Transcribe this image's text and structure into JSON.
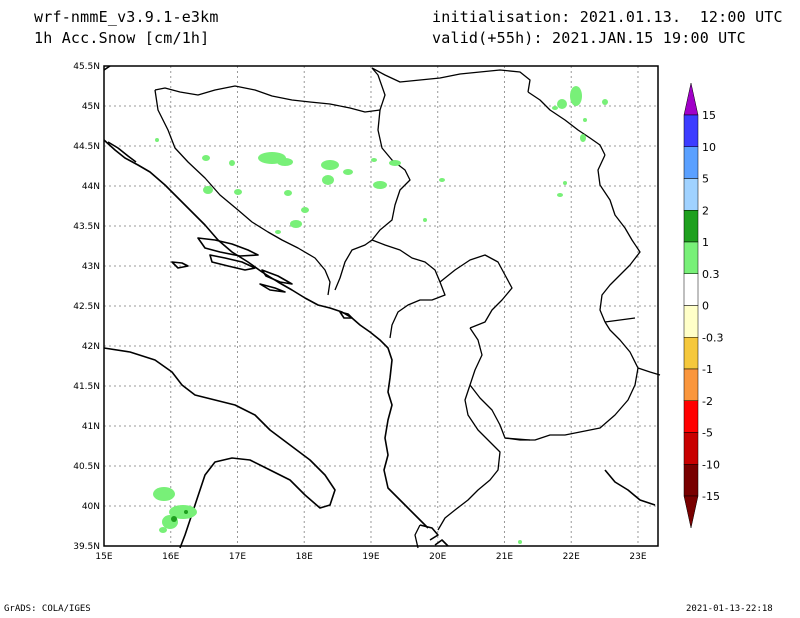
{
  "header": {
    "model": "wrf-nmmE_v3.9.1-e3km",
    "field": "1h Acc.Snow [cm/1h]",
    "init": "initialisation: 2021.01.13.  12:00 UTC",
    "valid": "valid(+55h): 2021.JAN.15 19:00 UTC"
  },
  "map": {
    "lon_range": [
      15,
      23.3
    ],
    "lat_range": [
      39.5,
      45.5
    ],
    "x_ticks": [
      "15E",
      "16E",
      "17E",
      "18E",
      "19E",
      "20E",
      "21E",
      "22E",
      "23E"
    ],
    "y_ticks": [
      "45.5N",
      "45N",
      "44.5N",
      "44N",
      "43.5N",
      "43N",
      "42.5N",
      "42N",
      "41.5N",
      "41N",
      "40.5N",
      "40N",
      "39.5N"
    ]
  },
  "legend": {
    "labels": [
      "15",
      "10",
      "5",
      "2",
      "1",
      "0.3",
      "0",
      "-0.3",
      "-1",
      "-2",
      "-5",
      "-10",
      "-15"
    ],
    "colors": [
      "#a000c8",
      "#3c3cff",
      "#5aa0ff",
      "#a0d2ff",
      "#1ea01e",
      "#78f078",
      "#ffffff",
      "#ffffc8",
      "#f5c83c",
      "#fa963c",
      "#ff0000",
      "#c80000",
      "#780000"
    ]
  },
  "footer": {
    "left": "GrADS: COLA/IGES",
    "right": "2021-01-13-22:18"
  }
}
